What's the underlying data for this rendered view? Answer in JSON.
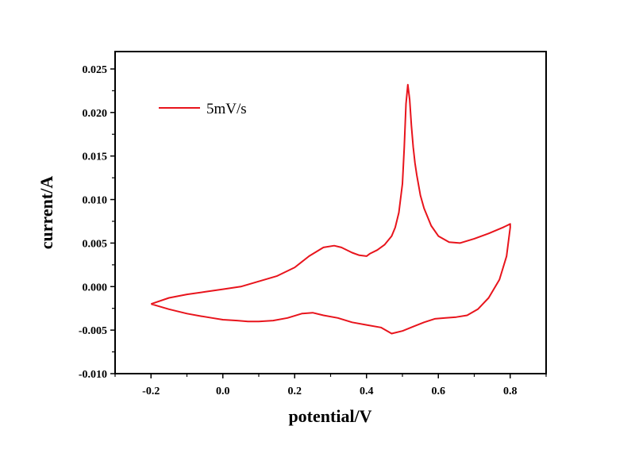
{
  "chart_data": {
    "type": "line",
    "xlabel": "potential/V",
    "ylabel": "current/A",
    "xlim": [
      -0.3,
      0.9
    ],
    "ylim": [
      -0.01,
      0.027
    ],
    "x_ticks": [
      -0.2,
      0.0,
      0.2,
      0.4,
      0.6,
      0.8
    ],
    "x_tick_labels": [
      "-0.2",
      "0.0",
      "0.2",
      "0.4",
      "0.6",
      "0.8"
    ],
    "y_ticks": [
      -0.01,
      -0.005,
      0.0,
      0.005,
      0.01,
      0.015,
      0.02,
      0.025
    ],
    "y_tick_labels": [
      "-0.010",
      "-0.005",
      "0.000",
      "0.005",
      "0.010",
      "0.015",
      "0.020",
      "0.025"
    ],
    "grid": false,
    "legend_position": "top-left",
    "series": [
      {
        "name": "5mV/s",
        "color": "#e8141c",
        "x": [
          -0.2,
          -0.15,
          -0.1,
          -0.05,
          0.0,
          0.05,
          0.1,
          0.15,
          0.2,
          0.24,
          0.28,
          0.31,
          0.33,
          0.36,
          0.38,
          0.4,
          0.41,
          0.43,
          0.45,
          0.47,
          0.48,
          0.49,
          0.5,
          0.505,
          0.51,
          0.515,
          0.52,
          0.525,
          0.53,
          0.535,
          0.54,
          0.55,
          0.56,
          0.58,
          0.6,
          0.63,
          0.66,
          0.7,
          0.74,
          0.78,
          0.8,
          0.8,
          0.79,
          0.77,
          0.74,
          0.71,
          0.68,
          0.65,
          0.62,
          0.59,
          0.56,
          0.53,
          0.5,
          0.47,
          0.44,
          0.4,
          0.36,
          0.32,
          0.28,
          0.25,
          0.22,
          0.18,
          0.14,
          0.1,
          0.07,
          0.04,
          0.0,
          -0.03,
          -0.06,
          -0.1,
          -0.15,
          -0.2
        ],
        "values": [
          -0.002,
          -0.0013,
          -0.0009,
          -0.0006,
          -0.0003,
          0.0,
          0.0006,
          0.0012,
          0.0022,
          0.0035,
          0.0045,
          0.0047,
          0.0045,
          0.0039,
          0.0036,
          0.0035,
          0.0038,
          0.0042,
          0.0048,
          0.0058,
          0.0068,
          0.0085,
          0.0118,
          0.016,
          0.021,
          0.0232,
          0.0215,
          0.0185,
          0.016,
          0.0142,
          0.0128,
          0.0105,
          0.009,
          0.007,
          0.0058,
          0.0051,
          0.005,
          0.0055,
          0.0061,
          0.0068,
          0.0072,
          0.0068,
          0.0035,
          0.0008,
          -0.0013,
          -0.0026,
          -0.0033,
          -0.0035,
          -0.0036,
          -0.0037,
          -0.0041,
          -0.0046,
          -0.0051,
          -0.0054,
          -0.0047,
          -0.0044,
          -0.0041,
          -0.0036,
          -0.0033,
          -0.003,
          -0.0031,
          -0.0036,
          -0.0039,
          -0.004,
          -0.004,
          -0.0039,
          -0.0038,
          -0.0036,
          -0.0034,
          -0.0031,
          -0.0026,
          -0.002
        ]
      }
    ]
  }
}
